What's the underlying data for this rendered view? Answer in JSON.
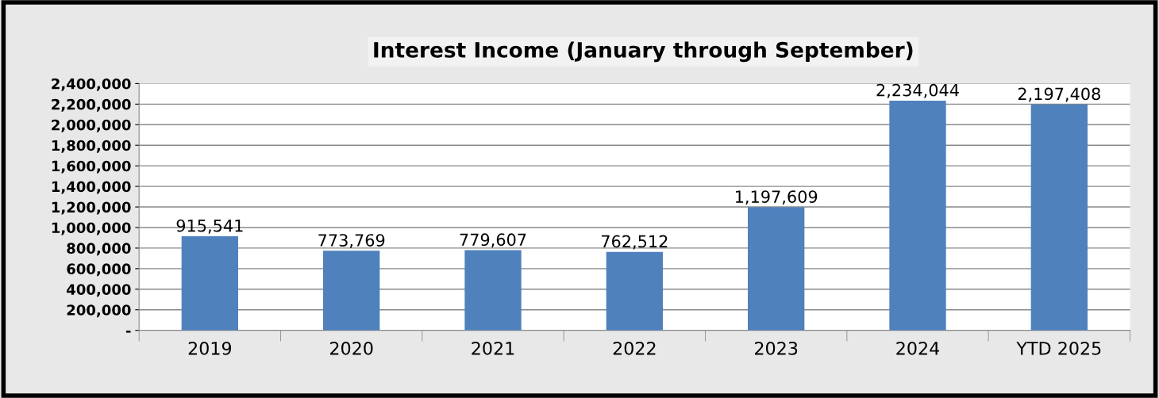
{
  "chart_data": {
    "type": "bar",
    "title": "Interest Income (January through September)",
    "categories": [
      "2019",
      "2020",
      "2021",
      "2022",
      "2023",
      "2024",
      "YTD 2025"
    ],
    "values": [
      915541,
      773769,
      779607,
      762512,
      1197609,
      2234044,
      2197408
    ],
    "value_labels": [
      "915,541",
      "773,769",
      "779,607",
      "762,512",
      "1,197,609",
      "2,234,044",
      "2,197,408"
    ],
    "color": "#4f81bd",
    "ylim": [
      0,
      2400000
    ],
    "yticks": [
      {
        "value": 0,
        "label": "-"
      },
      {
        "value": 200000,
        "label": "200,000"
      },
      {
        "value": 400000,
        "label": "400,000"
      },
      {
        "value": 600000,
        "label": "600,000"
      },
      {
        "value": 800000,
        "label": "800,000"
      },
      {
        "value": 1000000,
        "label": "1,000,000"
      },
      {
        "value": 1200000,
        "label": "1,200,000"
      },
      {
        "value": 1400000,
        "label": "1,400,000"
      },
      {
        "value": 1600000,
        "label": "1,600,000"
      },
      {
        "value": 1800000,
        "label": "1,800,000"
      },
      {
        "value": 2000000,
        "label": "2,000,000"
      },
      {
        "value": 2200000,
        "label": "2,200,000"
      },
      {
        "value": 2400000,
        "label": "2,400,000"
      }
    ],
    "grid": "y"
  }
}
